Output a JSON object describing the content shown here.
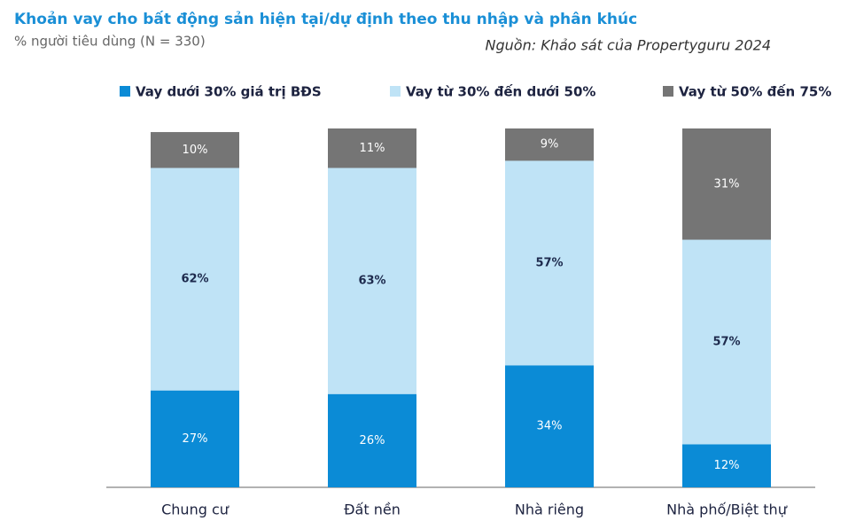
{
  "chart_data": {
    "type": "stacked_bar",
    "title": "Khoản vay cho bất động sản hiện tại/dự định theo thu nhập và phân khúc",
    "subtitle": "% người tiêu dùng (N = 330)",
    "source": "Nguồn: Khảo sát của Propertyguru 2024",
    "categories": [
      "Chung cư",
      "Đất nền",
      "Nhà riêng",
      "Nhà phố/Biệt thự"
    ],
    "series": [
      {
        "name": "Vay dưới 30% giá trị BĐS",
        "color": "#0b8bd6",
        "values": [
          27,
          26,
          34,
          12
        ],
        "value_labels": [
          "27%",
          "26%",
          "34%",
          "12%"
        ]
      },
      {
        "name": "Vay từ 30% đến dưới 50%",
        "color": "#bfe3f6",
        "values": [
          62,
          63,
          57,
          57
        ],
        "value_labels": [
          "62%",
          "63%",
          "57%",
          "57%"
        ]
      },
      {
        "name": "Vay từ 50% đến 75%",
        "color": "#757575",
        "values": [
          10,
          11,
          9,
          31
        ],
        "value_labels": [
          "10%",
          "11%",
          "9%",
          "31%"
        ]
      }
    ],
    "legend": "top"
  }
}
